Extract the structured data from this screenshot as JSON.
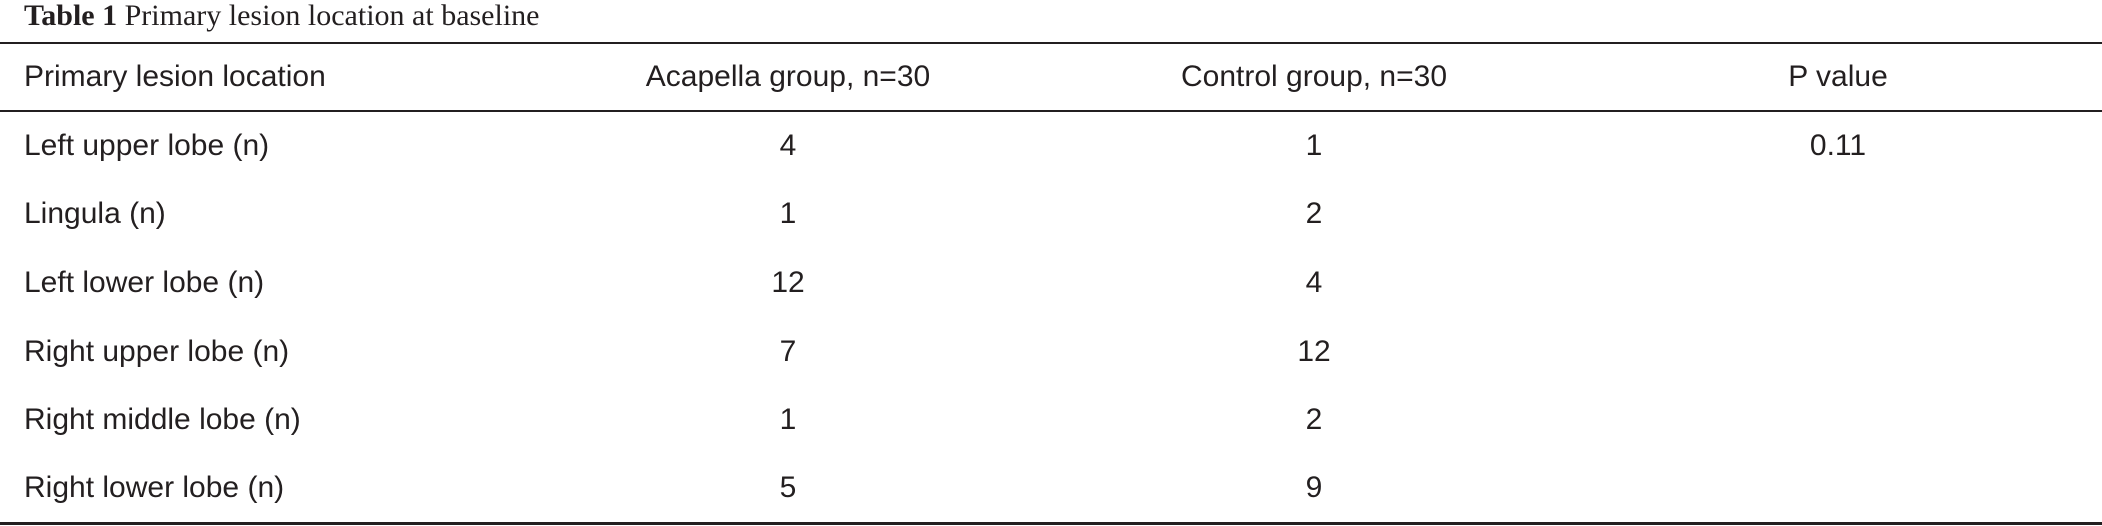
{
  "caption": {
    "label": "Table 1",
    "title": "Primary lesion location at baseline"
  },
  "table": {
    "headers": [
      "Primary lesion location",
      "Acapella group, n=30",
      "Control group, n=30",
      "P value"
    ],
    "rows": [
      [
        "Left upper lobe (n)",
        "4",
        "1",
        "0.11"
      ],
      [
        "Lingula (n)",
        "1",
        "2",
        ""
      ],
      [
        "Left lower lobe (n)",
        "12",
        "4",
        ""
      ],
      [
        "Right upper lobe (n)",
        "7",
        "12",
        ""
      ],
      [
        "Right middle lobe (n)",
        "1",
        "2",
        ""
      ],
      [
        "Right lower lobe (n)",
        "5",
        "9",
        ""
      ]
    ]
  }
}
